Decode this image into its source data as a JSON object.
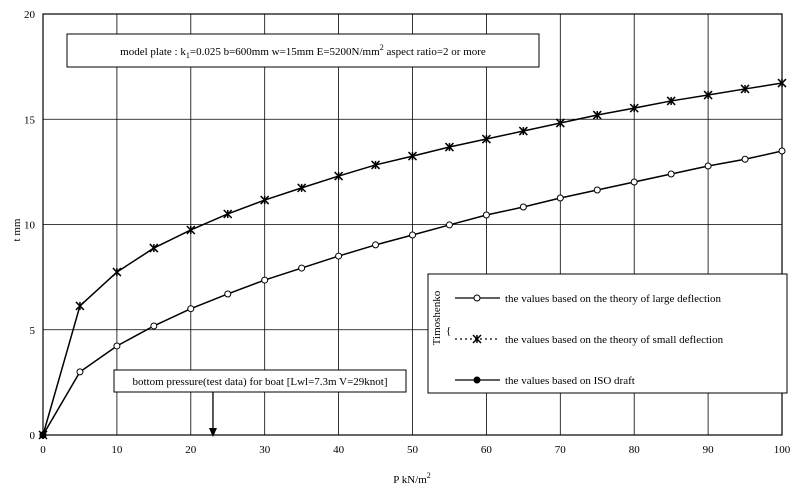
{
  "chart_data": {
    "type": "line",
    "x_label": [
      "P kN/m",
      "2"
    ],
    "y_label": "t mm",
    "xlim": [
      0,
      100
    ],
    "ylim": [
      0,
      20
    ],
    "xticks": [
      0,
      10,
      20,
      30,
      40,
      50,
      60,
      70,
      80,
      90,
      100
    ],
    "yticks": [
      0,
      5,
      10,
      15,
      20
    ],
    "grid": true,
    "legend_group": "Timoshenko",
    "series": [
      {
        "name": "the values based on the theory of large deflection",
        "color": "#000000",
        "marker": "circle-open",
        "line_style": "solid",
        "x": [
          0,
          5,
          10,
          15,
          20,
          25,
          30,
          35,
          40,
          45,
          50,
          55,
          60,
          65,
          70,
          75,
          80,
          85,
          90,
          95,
          100
        ],
        "values": [
          0,
          3.0,
          4.23,
          5.18,
          6.0,
          6.7,
          7.36,
          7.93,
          8.5,
          9.03,
          9.5,
          9.98,
          10.45,
          10.83,
          11.26,
          11.64,
          12.02,
          12.4,
          12.78,
          13.1,
          13.49
        ]
      },
      {
        "name": "the values based on the theory of small deflection",
        "color": "#000000",
        "marker": "x",
        "line_style": "dotted",
        "x": [
          0,
          5,
          10,
          15,
          20,
          25,
          30,
          35,
          40,
          45,
          50,
          55,
          60,
          65,
          70,
          75,
          80,
          85,
          90,
          95,
          100
        ],
        "values": [
          0,
          6.13,
          7.74,
          8.88,
          9.74,
          10.5,
          11.16,
          11.74,
          12.3,
          12.83,
          13.25,
          13.68,
          14.06,
          14.44,
          14.82,
          15.2,
          15.53,
          15.87,
          16.15,
          16.44,
          16.72
        ]
      },
      {
        "name": "the values based on ISO draft",
        "color": "#000000",
        "marker": "circle-filled",
        "line_style": "solid",
        "x": [
          0
        ],
        "values": [
          0
        ]
      }
    ],
    "annotations": [
      {
        "parts": [
          "model plate : k",
          "1",
          "=0.025 b=600mm w=15mm E=5200N/mm",
          "2",
          " aspect ratio=2 or more"
        ]
      },
      {
        "parts": [
          "bottom pressure(test data) for boat [Lwl=7.3m V=29knot]"
        ],
        "x": 23
      }
    ]
  }
}
